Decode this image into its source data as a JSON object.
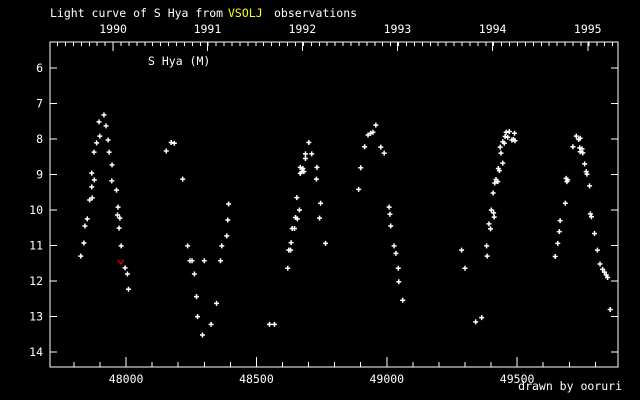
{
  "title": {
    "prefix": "Light curve of S Hya from",
    "highlight": "VSOLJ",
    "suffix": "observations"
  },
  "annotation": "S Hya (M)",
  "credit": "drawn by ooruri",
  "colors": {
    "background": "#000000",
    "foreground": "#ffffff",
    "highlight": "#ffff00",
    "credit": "#00ffff",
    "limit_marker": "#e00000"
  },
  "chart_data": {
    "type": "scatter",
    "title": "Light curve of S Hya from VSOLJ observations",
    "series_label": "S Hya (M)",
    "marker": "plus",
    "grid": false,
    "xlim": [
      47708,
      49887
    ],
    "ylim": [
      14.42,
      5.27
    ],
    "y_ticks": [
      6,
      7,
      8,
      9,
      10,
      11,
      12,
      13,
      14
    ],
    "x_bottom_ticks": {
      "major": [
        48000,
        48500,
        49000,
        49500
      ],
      "major_labels": [
        "48000",
        "48500",
        "49000",
        "49500"
      ],
      "minor_step": 100,
      "minor_range": [
        47800,
        49800
      ]
    },
    "x_top_years": [
      {
        "label": "1990",
        "jd": 47950
      },
      {
        "label": "1991",
        "jd": 48312
      },
      {
        "label": "1992",
        "jd": 48676
      },
      {
        "label": "1993",
        "jd": 49041
      },
      {
        "label": "1994",
        "jd": 49406
      },
      {
        "label": "1995",
        "jd": 49771
      }
    ],
    "x_top_minor_step_days": 30.42,
    "points": [
      [
        47826,
        11.3
      ],
      [
        47838,
        10.93
      ],
      [
        47842,
        10.45
      ],
      [
        47851,
        10.25
      ],
      [
        47860,
        9.72
      ],
      [
        47868,
        9.35
      ],
      [
        47868,
        8.96
      ],
      [
        47870,
        9.66
      ],
      [
        47877,
        8.37
      ],
      [
        47878,
        9.15
      ],
      [
        47887,
        8.11
      ],
      [
        47896,
        7.52
      ],
      [
        47899,
        7.92
      ],
      [
        47915,
        7.32
      ],
      [
        47923,
        7.63
      ],
      [
        47931,
        8.03
      ],
      [
        47935,
        8.37
      ],
      [
        47945,
        9.18
      ],
      [
        47946,
        8.73
      ],
      [
        47963,
        9.44
      ],
      [
        47967,
        10.14
      ],
      [
        47969,
        9.92
      ],
      [
        47973,
        10.51
      ],
      [
        47976,
        10.23
      ],
      [
        47981,
        11.01
      ],
      [
        47996,
        11.63
      ],
      [
        48005,
        11.8
      ],
      [
        48009,
        12.23
      ],
      [
        48154,
        8.34
      ],
      [
        48173,
        8.1
      ],
      [
        48185,
        8.12
      ],
      [
        48217,
        9.13
      ],
      [
        48236,
        11.01
      ],
      [
        48245,
        11.43
      ],
      [
        48253,
        11.43
      ],
      [
        48262,
        11.8
      ],
      [
        48270,
        12.44
      ],
      [
        48274,
        13.0
      ],
      [
        48293,
        13.52
      ],
      [
        48300,
        11.43
      ],
      [
        48326,
        13.22
      ],
      [
        48347,
        12.63
      ],
      [
        48362,
        11.43
      ],
      [
        48367,
        11.01
      ],
      [
        48386,
        10.73
      ],
      [
        48390,
        10.28
      ],
      [
        48393,
        9.83
      ],
      [
        48550,
        13.22
      ],
      [
        48569,
        13.22
      ],
      [
        48620,
        11.64
      ],
      [
        48624,
        11.13
      ],
      [
        48631,
        11.13
      ],
      [
        48633,
        10.92
      ],
      [
        48637,
        10.52
      ],
      [
        48646,
        10.52
      ],
      [
        48650,
        10.21
      ],
      [
        48655,
        9.65
      ],
      [
        48657,
        10.25
      ],
      [
        48665,
        10.0
      ],
      [
        48668,
        8.8
      ],
      [
        48674,
        8.92
      ],
      [
        48668,
        8.97
      ],
      [
        48678,
        8.83
      ],
      [
        48682,
        8.92
      ],
      [
        48688,
        8.42
      ],
      [
        48688,
        8.55
      ],
      [
        48701,
        8.1
      ],
      [
        48712,
        8.42
      ],
      [
        48730,
        9.13
      ],
      [
        48732,
        8.8
      ],
      [
        48742,
        10.23
      ],
      [
        48746,
        9.81
      ],
      [
        48765,
        10.94
      ],
      [
        48892,
        9.42
      ],
      [
        48900,
        8.81
      ],
      [
        48915,
        8.22
      ],
      [
        48928,
        7.89
      ],
      [
        48938,
        7.84
      ],
      [
        48947,
        7.81
      ],
      [
        48958,
        7.61
      ],
      [
        48977,
        8.23
      ],
      [
        48990,
        8.4
      ],
      [
        49009,
        9.92
      ],
      [
        49012,
        10.12
      ],
      [
        49015,
        10.45
      ],
      [
        49028,
        11.01
      ],
      [
        49035,
        11.22
      ],
      [
        49044,
        11.64
      ],
      [
        49046,
        12.02
      ],
      [
        49061,
        12.54
      ],
      [
        49287,
        11.13
      ],
      [
        49300,
        11.64
      ],
      [
        49341,
        13.15
      ],
      [
        49364,
        13.03
      ],
      [
        49383,
        11.01
      ],
      [
        49385,
        11.3
      ],
      [
        49392,
        10.39
      ],
      [
        49398,
        10.53
      ],
      [
        49401,
        10.0
      ],
      [
        49408,
        9.52
      ],
      [
        49410,
        10.08
      ],
      [
        49412,
        10.2
      ],
      [
        49414,
        9.24
      ],
      [
        49419,
        9.14
      ],
      [
        49426,
        9.2
      ],
      [
        49428,
        8.83
      ],
      [
        49432,
        8.89
      ],
      [
        49435,
        8.23
      ],
      [
        49438,
        8.4
      ],
      [
        49445,
        8.08
      ],
      [
        49445,
        8.68
      ],
      [
        49451,
        8.12
      ],
      [
        49454,
        7.93
      ],
      [
        49458,
        7.81
      ],
      [
        49464,
        7.95
      ],
      [
        49470,
        7.79
      ],
      [
        49480,
        8.03
      ],
      [
        49486,
        8.01
      ],
      [
        49490,
        7.84
      ],
      [
        49492,
        8.05
      ],
      [
        49646,
        11.31
      ],
      [
        49656,
        10.94
      ],
      [
        49662,
        10.61
      ],
      [
        49665,
        10.3
      ],
      [
        49685,
        9.81
      ],
      [
        49688,
        9.11
      ],
      [
        49691,
        9.2
      ],
      [
        49694,
        9.15
      ],
      [
        49714,
        8.22
      ],
      [
        49727,
        7.92
      ],
      [
        49736,
        8.01
      ],
      [
        49740,
        8.25
      ],
      [
        49742,
        7.98
      ],
      [
        49742,
        8.36
      ],
      [
        49749,
        8.28
      ],
      [
        49752,
        8.39
      ],
      [
        49759,
        8.7
      ],
      [
        49765,
        8.92
      ],
      [
        49768,
        8.99
      ],
      [
        49778,
        9.32
      ],
      [
        49781,
        10.11
      ],
      [
        49785,
        10.19
      ],
      [
        49797,
        10.66
      ],
      [
        49808,
        11.13
      ],
      [
        49818,
        11.52
      ],
      [
        49828,
        11.67
      ],
      [
        49835,
        11.75
      ],
      [
        49842,
        11.83
      ],
      [
        49847,
        11.9
      ],
      [
        49857,
        12.8
      ]
    ],
    "fainter_than_limits": [
      [
        47980,
        11.46
      ]
    ]
  }
}
